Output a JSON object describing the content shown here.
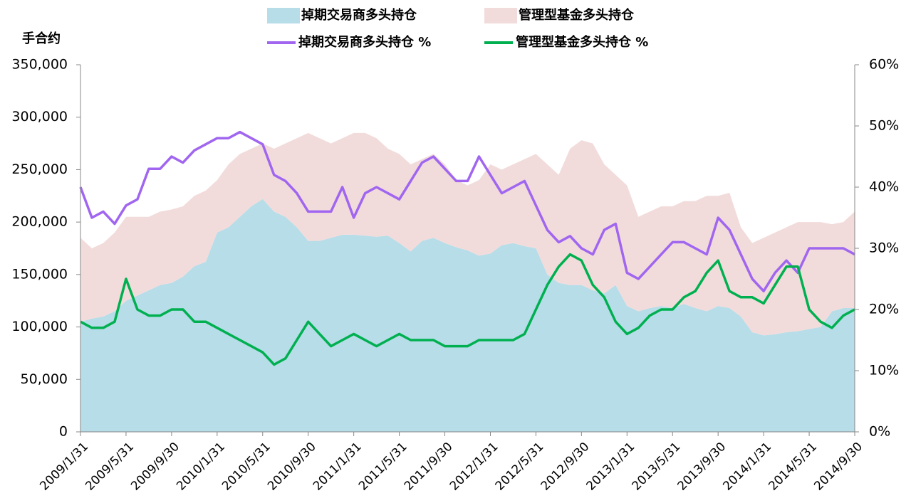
{
  "chart_data": {
    "type": "stacked-area-line",
    "y_label": "手合约",
    "categories": [
      "2009/1/31",
      null,
      null,
      null,
      "2009/5/31",
      null,
      null,
      null,
      "2009/9/30",
      null,
      null,
      null,
      "2010/1/31",
      null,
      null,
      null,
      "2010/5/31",
      null,
      null,
      null,
      "2010/9/30",
      null,
      null,
      null,
      "2011/1/31",
      null,
      null,
      null,
      "2011/5/31",
      null,
      null,
      null,
      "2011/9/30",
      null,
      null,
      null,
      "2012/1/31",
      null,
      null,
      null,
      "2012/5/31",
      null,
      null,
      null,
      "2012/9/30",
      null,
      null,
      null,
      "2013/1/31",
      null,
      null,
      null,
      "2013/5/31",
      null,
      null,
      null,
      "2013/9/30",
      null,
      null,
      null,
      "2014/1/31",
      null,
      null,
      null,
      "2014/5/31",
      null,
      null,
      null,
      "2014/9/30"
    ],
    "ylim": [
      0,
      350000
    ],
    "yticks": [
      0,
      {
        "value": 50000,
        "label": "50,000"
      },
      {
        "value": 100000,
        "label": "100,000"
      },
      {
        "value": 150000,
        "label": "150,000"
      },
      {
        "value": 200000,
        "label": "200,000"
      },
      {
        "value": 250000,
        "label": "250,000"
      },
      {
        "value": 300000,
        "label": "300,000"
      },
      {
        "value": 350000,
        "label": "350,000"
      }
    ],
    "y2lim": [
      0,
      60
    ],
    "y2ticks": [
      {
        "value": 0,
        "label": "0%"
      },
      {
        "value": 10,
        "label": "10%"
      },
      {
        "value": 20,
        "label": "20%"
      },
      {
        "value": 30,
        "label": "30%"
      },
      {
        "value": 40,
        "label": "40%"
      },
      {
        "value": 50,
        "label": "50%"
      },
      {
        "value": 60,
        "label": "60%"
      }
    ],
    "series": [
      {
        "name": "掉期交易商多头持仓",
        "kind": "area",
        "color": "#b7dde8",
        "values": [
          105000,
          108000,
          110000,
          115000,
          125000,
          130000,
          135000,
          140000,
          142000,
          148000,
          158000,
          162000,
          190000,
          195000,
          205000,
          215000,
          222000,
          210000,
          205000,
          195000,
          182000,
          182000,
          185000,
          188000,
          188000,
          187000,
          186000,
          187000,
          180000,
          172000,
          182000,
          185000,
          180000,
          176000,
          173000,
          168000,
          170000,
          178000,
          180000,
          177000,
          175000,
          150000,
          142000,
          140000,
          140000,
          135000,
          132000,
          140000,
          120000,
          115000,
          118000,
          120000,
          118000,
          122000,
          118000,
          115000,
          120000,
          118000,
          110000,
          95000,
          92000,
          93000,
          95000,
          96000,
          98000,
          100000,
          115000,
          118000,
          118000
        ]
      },
      {
        "name": "管理型基金多头持仓",
        "kind": "area",
        "color": "#f2dcdb",
        "values": [
          80000,
          67000,
          70000,
          75000,
          80000,
          75000,
          70000,
          70000,
          70000,
          67000,
          67000,
          68000,
          50000,
          60000,
          60000,
          55000,
          53000,
          60000,
          70000,
          85000,
          103000,
          98000,
          90000,
          92000,
          97000,
          98000,
          94000,
          83000,
          85000,
          83000,
          78000,
          80000,
          75000,
          64000,
          62000,
          72000,
          85000,
          72000,
          75000,
          83000,
          90000,
          105000,
          103000,
          130000,
          138000,
          140000,
          123000,
          105000,
          115000,
          90000,
          92000,
          95000,
          97000,
          98000,
          102000,
          110000,
          105000,
          110000,
          85000,
          85000,
          93000,
          97000,
          100000,
          104000,
          102000,
          100000,
          83000,
          82000,
          92000
        ]
      },
      {
        "name": "掉期交易商多头持仓 %",
        "kind": "line",
        "axis": "y2",
        "color": "#a066f0",
        "values": [
          40,
          35,
          36,
          34,
          37,
          38,
          43,
          43,
          45,
          44,
          46,
          47,
          48,
          48,
          49,
          48,
          47,
          42,
          41,
          39,
          36,
          36,
          36,
          40,
          35,
          39,
          40,
          39,
          38,
          41,
          44,
          45,
          43,
          41,
          41,
          45,
          42,
          39,
          40,
          41,
          37,
          33,
          31,
          32,
          30,
          29,
          33,
          34,
          26,
          25,
          27,
          29,
          31,
          31,
          30,
          29,
          35,
          33,
          29,
          25,
          23,
          26,
          28,
          26,
          30,
          30,
          30,
          30,
          29
        ]
      },
      {
        "name": "管理型基金多头持仓 %",
        "kind": "line",
        "axis": "y2",
        "color": "#00b050",
        "values": [
          18,
          17,
          17,
          18,
          25,
          20,
          19,
          19,
          20,
          20,
          18,
          18,
          17,
          16,
          15,
          14,
          13,
          11,
          12,
          15,
          18,
          16,
          14,
          15,
          16,
          15,
          14,
          15,
          16,
          15,
          15,
          15,
          14,
          14,
          14,
          15,
          15,
          15,
          15,
          16,
          20,
          24,
          27,
          29,
          28,
          24,
          22,
          18,
          16,
          17,
          19,
          20,
          20,
          22,
          23,
          26,
          28,
          23,
          22,
          22,
          21,
          24,
          27,
          27,
          20,
          18,
          17,
          19,
          20
        ]
      }
    ]
  }
}
